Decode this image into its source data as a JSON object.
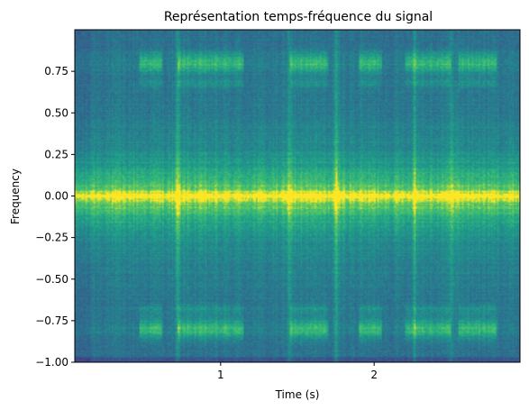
{
  "chart_data": {
    "type": "heatmap",
    "title": "Représentation temps-fréquence du signal",
    "xlabel": "Time (s)",
    "ylabel": "Frequency",
    "xlim": [
      0.05,
      2.95
    ],
    "ylim": [
      -1.0,
      1.0
    ],
    "x_ticks": [
      1,
      2
    ],
    "x_tick_labels": [
      "1",
      "2"
    ],
    "y_ticks": [
      -1.0,
      -0.75,
      -0.5,
      -0.25,
      0.0,
      0.25,
      0.5,
      0.75
    ],
    "y_tick_labels": [
      "−1.00",
      "−0.75",
      "−0.50",
      "−0.25",
      "0.00",
      "0.25",
      "0.50",
      "0.75"
    ],
    "grid": false,
    "colormap": "viridis",
    "value_range": [
      0,
      1
    ],
    "frequency_bands": [
      {
        "center": 0.0,
        "width": 0.05,
        "level": 0.96
      },
      {
        "center": 0.0,
        "width": 0.3,
        "level": 0.78
      },
      {
        "center": 0.8,
        "width": 0.05,
        "level": 0.82
      },
      {
        "center": -0.8,
        "width": 0.05,
        "level": 0.8
      }
    ],
    "transients_s": [
      0.72,
      1.45,
      1.75,
      2.26,
      2.5
    ],
    "high_band_active_intervals_s": [
      [
        0.47,
        0.62
      ],
      [
        0.72,
        1.15
      ],
      [
        1.45,
        1.7
      ],
      [
        1.9,
        2.05
      ],
      [
        2.2,
        2.5
      ],
      [
        2.55,
        2.8
      ]
    ],
    "colors": {
      "low": "#3b528b",
      "mid": "#21918c",
      "high": "#fde725"
    }
  }
}
